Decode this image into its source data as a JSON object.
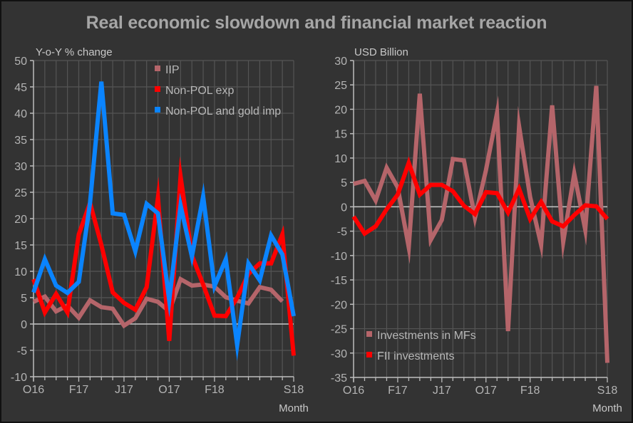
{
  "title": "Real economic slowdown and financial market reaction",
  "chart_data": [
    {
      "type": "line",
      "title": "",
      "ylabel": "Y-o-Y % change",
      "xlabel": "Month",
      "ylim": [
        -10,
        50
      ],
      "yticks": [
        50,
        45,
        40,
        35,
        30,
        25,
        20,
        15,
        10,
        5,
        0,
        -5,
        -10
      ],
      "x": [
        "Oct16",
        "Nov16",
        "Dec16",
        "Jan17",
        "Feb17",
        "Mar17",
        "Apr17",
        "May17",
        "Jun17",
        "Jul17",
        "Aug17",
        "Sep17",
        "Oct17",
        "Nov17",
        "Dec17",
        "Jan18",
        "Feb18",
        "Mar18",
        "Apr18",
        "May18",
        "Jun18",
        "Jul18",
        "Aug18",
        "Sep18"
      ],
      "xtick_labels": [
        {
          "index": 0,
          "label": "O16"
        },
        {
          "index": 4,
          "label": "F17"
        },
        {
          "index": 8,
          "label": "J17"
        },
        {
          "index": 12,
          "label": "O17"
        },
        {
          "index": 16,
          "label": "F18"
        },
        {
          "index": 23,
          "label": "S18"
        }
      ],
      "grid": true,
      "legend": "top-right",
      "series": [
        {
          "name": "IIP",
          "color": "#b5656a",
          "values": [
            4.2,
            5.2,
            2.4,
            3.5,
            1.2,
            4.5,
            3.2,
            2.9,
            -0.3,
            1.1,
            4.8,
            4.2,
            2.4,
            8.5,
            7.3,
            7.5,
            7.1,
            5.1,
            4.4,
            3.9,
            7.0,
            6.5,
            4.3,
            null
          ]
        },
        {
          "name": "Non-POL exp",
          "color": "#ff0000",
          "values": [
            8.5,
            2.2,
            5.7,
            2.2,
            17.0,
            23.0,
            15.0,
            6.0,
            4.0,
            2.7,
            7.0,
            24.0,
            -3.2,
            28.0,
            13.0,
            7.5,
            1.6,
            1.5,
            5.0,
            9.5,
            11.5,
            11.5,
            17.0,
            -6.0
          ]
        },
        {
          "name": "Non-POL and gold imp",
          "color": "#0a84ff",
          "values": [
            6.0,
            12.3,
            7.3,
            5.9,
            8.0,
            23.0,
            46.0,
            21.0,
            20.7,
            13.8,
            22.8,
            21.0,
            4.5,
            22.5,
            12.8,
            24.2,
            7.2,
            12.3,
            -4.0,
            11.5,
            8.3,
            16.8,
            13.2,
            1.5
          ]
        }
      ]
    },
    {
      "type": "line",
      "title": "",
      "ylabel": "USD Billion",
      "xlabel": "Month",
      "ylim": [
        -35,
        30
      ],
      "yticks": [
        30,
        25,
        20,
        15,
        10,
        5,
        0,
        -5,
        -10,
        -15,
        -20,
        -25,
        -30,
        -35
      ],
      "x": [
        "Oct16",
        "Nov16",
        "Dec16",
        "Jan17",
        "Feb17",
        "Mar17",
        "Apr17",
        "May17",
        "Jun17",
        "Jul17",
        "Aug17",
        "Sep17",
        "Oct17",
        "Nov17",
        "Dec17",
        "Jan18",
        "Feb18",
        "Mar18",
        "Apr18",
        "May18",
        "Jun18",
        "Jul18",
        "Aug18",
        "Sep18"
      ],
      "xtick_labels": [
        {
          "index": 0,
          "label": "O16"
        },
        {
          "index": 4,
          "label": "F17"
        },
        {
          "index": 8,
          "label": "J17"
        },
        {
          "index": 12,
          "label": "O17"
        },
        {
          "index": 16,
          "label": "F18"
        },
        {
          "index": 23,
          "label": "S18"
        }
      ],
      "grid": true,
      "legend": "bottom-left",
      "series": [
        {
          "name": "Investments in MFs",
          "color": "#b5656a",
          "values": [
            4.7,
            5.3,
            1.3,
            8.0,
            4.0,
            -8.3,
            23.2,
            -6.8,
            -2.7,
            9.8,
            9.5,
            -2.3,
            7.5,
            19.2,
            -25.5,
            16.5,
            2.0,
            -7.8,
            20.8,
            -7.2,
            6.8,
            -4.7,
            24.8,
            -32.0
          ]
        },
        {
          "name": "FII investments",
          "color": "#ff0000",
          "values": [
            -2.0,
            -5.5,
            -4.0,
            -0.5,
            2.5,
            9.0,
            2.5,
            4.5,
            4.5,
            3.2,
            0.2,
            -1.5,
            3.0,
            2.8,
            -1.2,
            3.7,
            -2.5,
            1.0,
            -3.0,
            -4.0,
            -1.7,
            0.3,
            0.1,
            -2.5
          ]
        }
      ]
    }
  ]
}
